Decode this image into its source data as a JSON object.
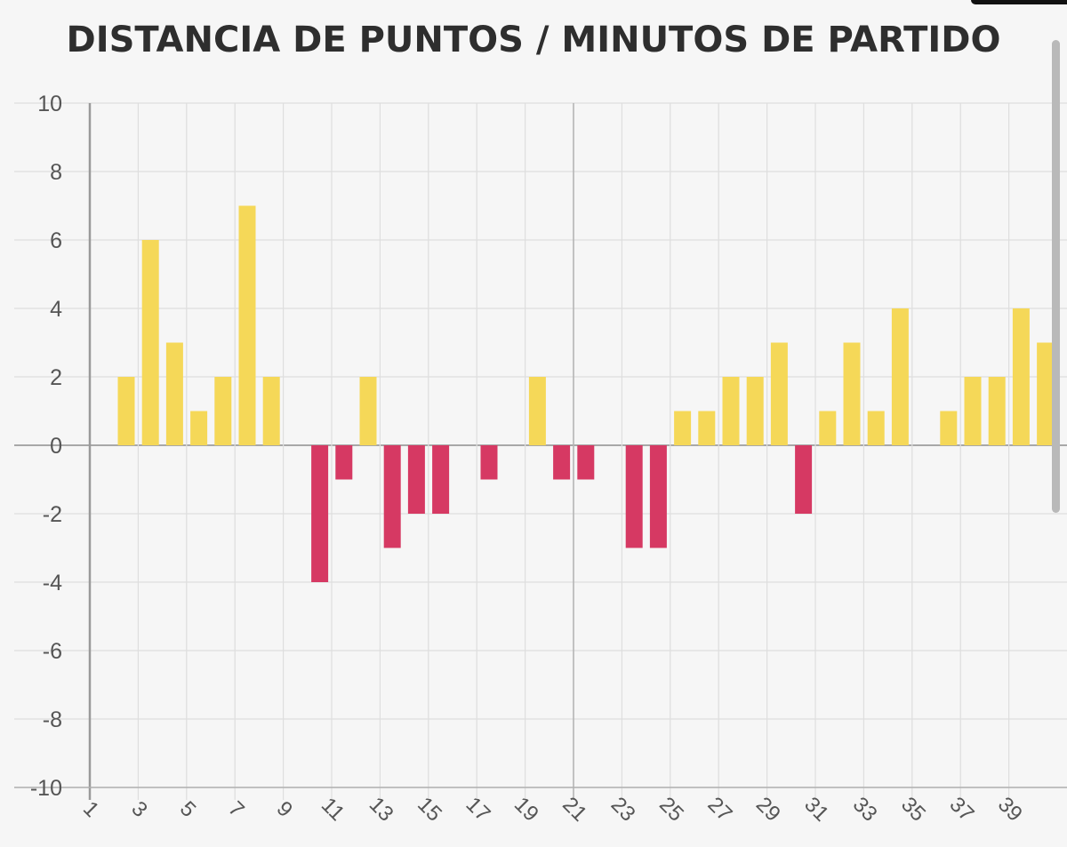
{
  "chart_data": {
    "type": "bar",
    "title": "DISTANCIA DE PUNTOS / MINUTOS DE PARTIDO",
    "xlabel": "",
    "ylabel": "",
    "ylim": [
      -10,
      10
    ],
    "yticks": [
      10,
      8,
      6,
      4,
      2,
      0,
      -2,
      -4,
      -6,
      -8,
      -10
    ],
    "xticks": [
      "1",
      "3",
      "5",
      "7",
      "9",
      "11",
      "13",
      "15",
      "17",
      "19",
      "21",
      "23",
      "25",
      "27",
      "29",
      "31",
      "33",
      "35",
      "37",
      "39"
    ],
    "categories": [
      "1",
      "2",
      "3",
      "4",
      "5",
      "6",
      "7",
      "8",
      "9",
      "10",
      "11",
      "12",
      "13",
      "14",
      "15",
      "16",
      "17",
      "18",
      "19",
      "20",
      "21",
      "22",
      "23",
      "24",
      "25",
      "26",
      "27",
      "28",
      "29",
      "30",
      "31",
      "32",
      "33",
      "34",
      "35",
      "36",
      "37",
      "38",
      "39",
      "40"
    ],
    "values": [
      2,
      6,
      3,
      1,
      2,
      7,
      2,
      0,
      -4,
      -1,
      2,
      -3,
      -2,
      -2,
      0,
      -1,
      0,
      2,
      -1,
      -1,
      0,
      -3,
      -3,
      1,
      1,
      2,
      2,
      3,
      -2,
      1,
      3,
      1,
      4,
      0,
      1,
      2,
      2,
      4,
      3,
      0
    ],
    "grid": true,
    "legend": "none",
    "colors": {
      "positive": "#f5d858",
      "negative": "#d63963",
      "grid": "#dedede",
      "axis": "#9a9a9a",
      "tick_label": "#555555",
      "background": "#f6f6f6"
    }
  }
}
